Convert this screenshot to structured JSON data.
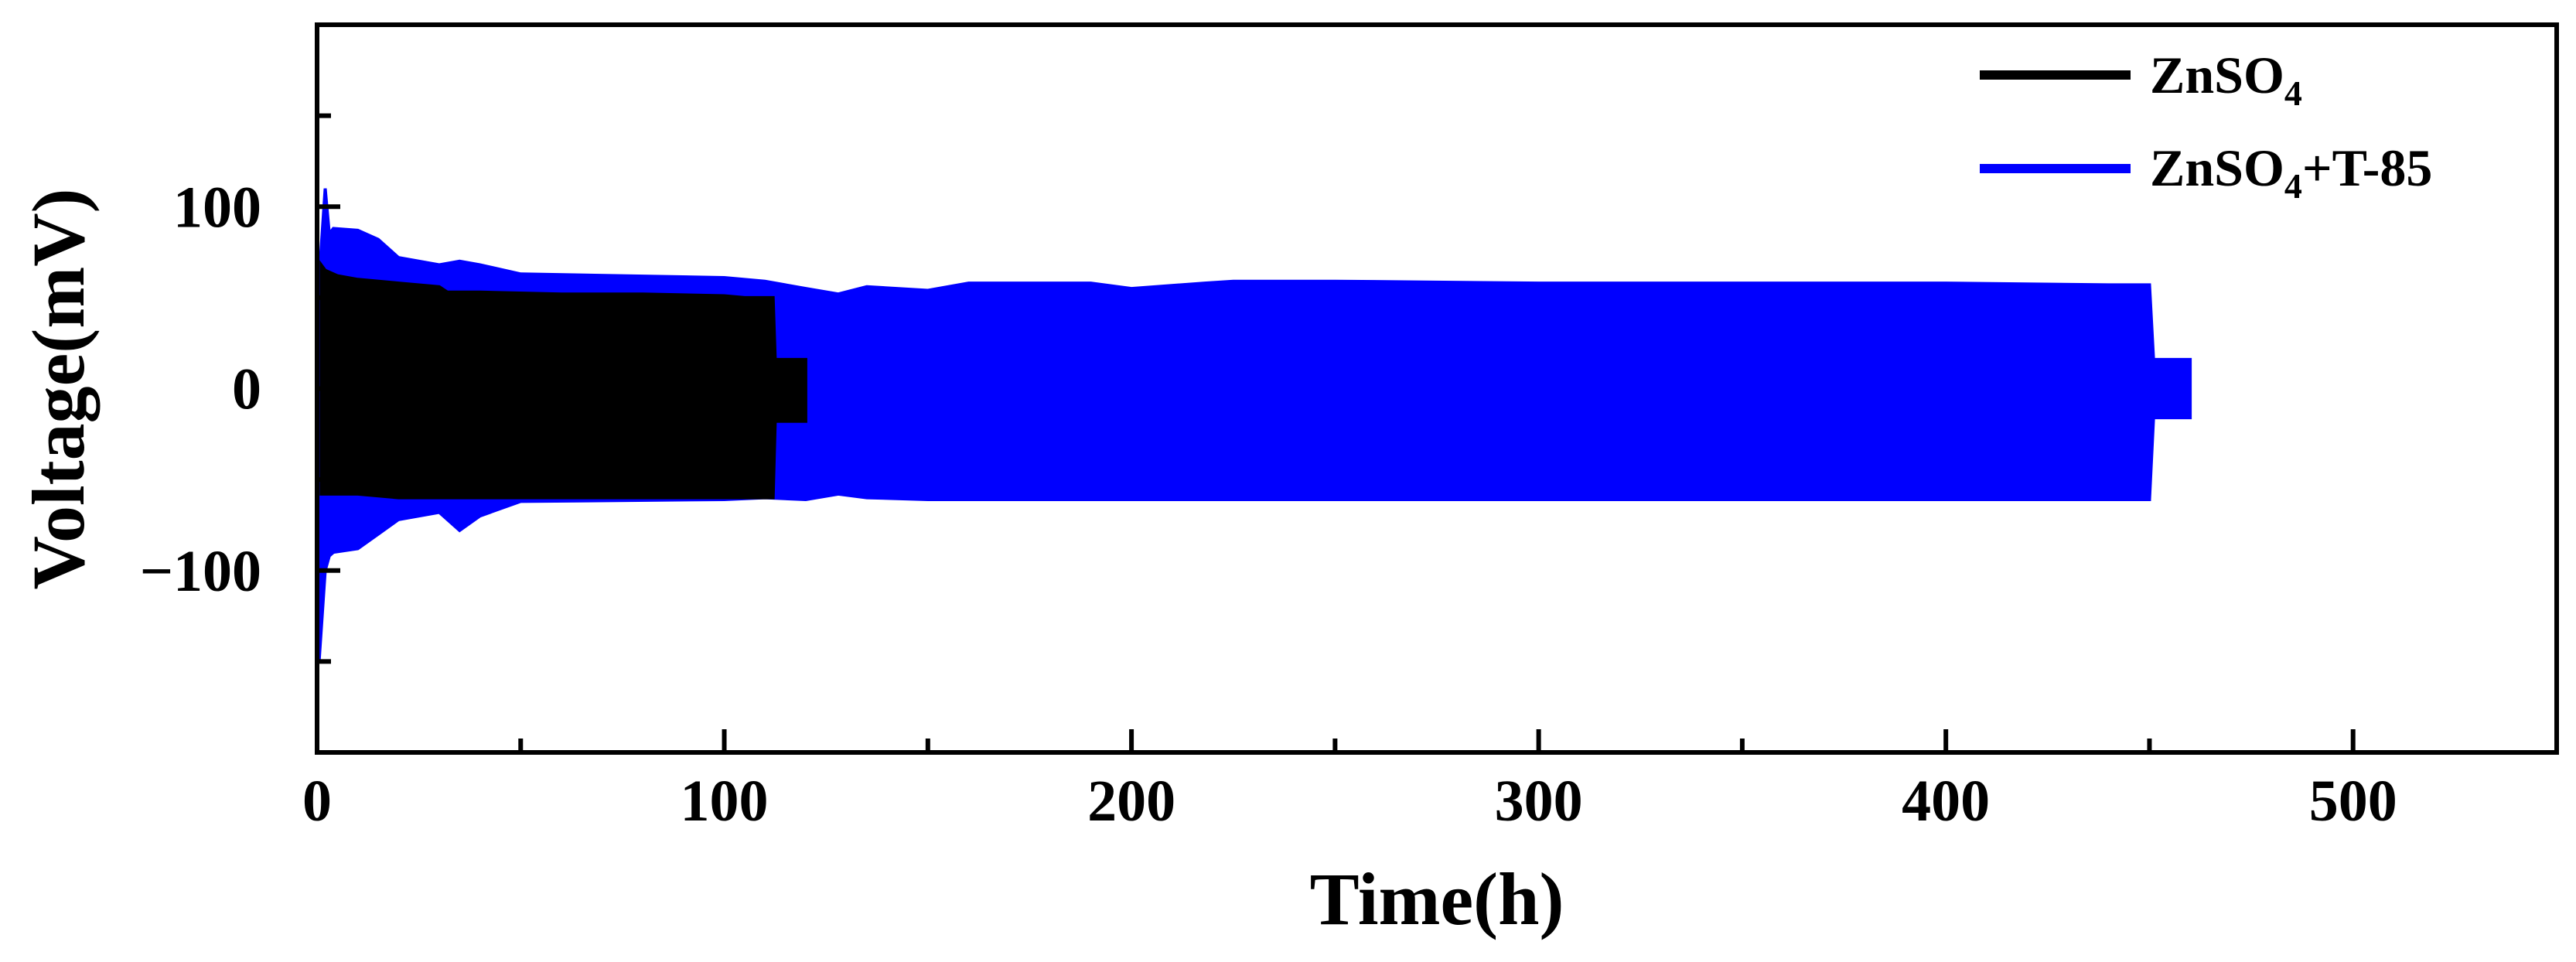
{
  "chart_data": {
    "type": "line",
    "xlabel": "Time(h)",
    "ylabel": "Voltage(mV)",
    "xlim": [
      0,
      550
    ],
    "ylim": [
      -200,
      200
    ],
    "x_ticks": [
      0,
      100,
      200,
      300,
      400,
      500
    ],
    "y_ticks": [
      -100,
      0,
      100
    ],
    "x_tick_labels": [
      "0",
      "100",
      "200",
      "300",
      "400",
      "500"
    ],
    "y_tick_labels": [
      "−100",
      "0",
      "100"
    ],
    "grid": false,
    "legend_position": "top-right",
    "series": [
      {
        "name": "ZnSO4",
        "name_base": "ZnSO",
        "name_sub": "4",
        "name_suffix": "",
        "color": "#000000",
        "envelope": {
          "x": [
            1,
            2,
            5,
            10,
            20,
            30,
            32,
            40,
            60,
            80,
            100,
            105,
            112,
            112.5,
            120
          ],
          "upper": [
            68,
            65,
            62,
            60,
            58,
            56,
            53,
            53,
            52,
            52,
            51,
            50,
            50,
            16,
            16
          ],
          "lower": [
            -58,
            -58,
            -58,
            -58,
            -60,
            -60,
            -60,
            -60,
            -60,
            -60,
            -60,
            -60,
            -60,
            -18,
            -18
          ]
        },
        "end_time": 120
      },
      {
        "name": "ZnSO4+T-85",
        "name_base": "ZnSO",
        "name_sub": "4",
        "name_suffix": "+T-85",
        "color": "#0000ff",
        "envelope": {
          "x": [
            0.5,
            2,
            3,
            4,
            10,
            15,
            20,
            30,
            35,
            40,
            50,
            100,
            110,
            120,
            128,
            135,
            150,
            160,
            190,
            200,
            218,
            225,
            250,
            300,
            350,
            400,
            440,
            450,
            451,
            460
          ],
          "upper": [
            60,
            110,
            85,
            88,
            87,
            82,
            72,
            68,
            70,
            68,
            63,
            61,
            59,
            55,
            52,
            56,
            54,
            58,
            58,
            55,
            58,
            59,
            59,
            58,
            58,
            58,
            57,
            57,
            16,
            16
          ],
          "lower": [
            -150,
            -100,
            -92,
            -90,
            -88,
            -80,
            -72,
            -68,
            -78,
            -70,
            -62,
            -61,
            -60,
            -61,
            -58,
            -60,
            -61,
            -61,
            -61,
            -61,
            -61,
            -61,
            -61,
            -61,
            -61,
            -61,
            -61,
            -61,
            -16,
            -16
          ]
        },
        "end_time": 460
      }
    ]
  }
}
